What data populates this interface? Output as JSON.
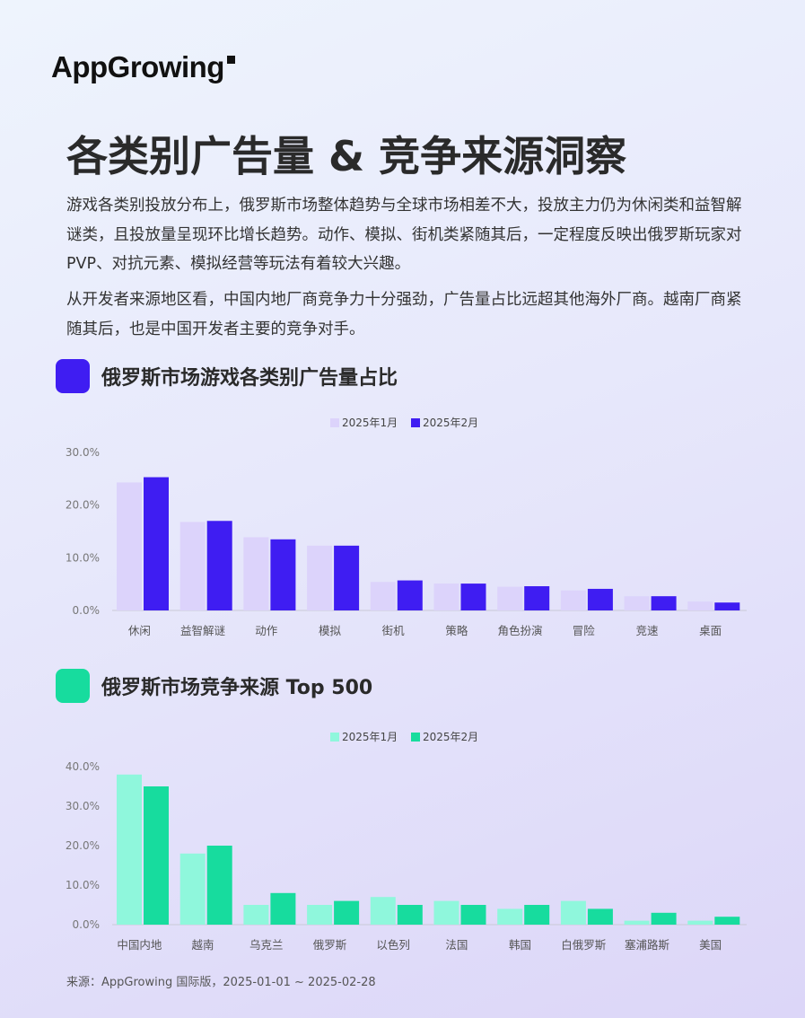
{
  "logo": {
    "text": "AppGrowing"
  },
  "title": "各类别广告量 & 竞争来源洞察",
  "paragraphs": [
    "游戏各类别投放分布上，俄罗斯市场整体趋势与全球市场相差不大，投放主力仍为休闲类和益智解谜类，且投放量呈现环比增长趋势。动作、模拟、街机类紧随其后，一定程度反映出俄罗斯玩家对 PVP、对抗元素、模拟经营等玩法有着较大兴趣。",
    "从开发者来源地区看，中国内地厂商竞争力十分强劲，广告量占比远超其他海外厂商。越南厂商紧随其后，也是中国开发者主要的竞争对手。"
  ],
  "section1": {
    "title": "俄罗斯市场游戏各类别广告量占比",
    "accent": "#3f1df2"
  },
  "section2": {
    "title": "俄罗斯市场竞争来源 Top 500",
    "accent": "#17dc9e"
  },
  "chart_data": [
    {
      "type": "bar",
      "categories": [
        "休闲",
        "益智解谜",
        "动作",
        "模拟",
        "街机",
        "策略",
        "角色扮演",
        "冒险",
        "竞速",
        "桌面"
      ],
      "series": [
        {
          "name": "2025年1月",
          "color": "#dcd3fb",
          "values": [
            24.3,
            16.8,
            13.9,
            12.3,
            5.4,
            5.1,
            4.5,
            3.8,
            2.7,
            1.7
          ]
        },
        {
          "name": "2025年2月",
          "color": "#3f1df2",
          "values": [
            25.3,
            17.0,
            13.5,
            12.3,
            5.7,
            5.1,
            4.6,
            4.1,
            2.7,
            1.5
          ]
        }
      ],
      "ylim": [
        0,
        30
      ],
      "yticks": [
        "0.0%",
        "10.0%",
        "20.0%",
        "30.0%"
      ],
      "legend": "top-center",
      "grid": false
    },
    {
      "type": "bar",
      "categories": [
        "中国内地",
        "越南",
        "乌克兰",
        "俄罗斯",
        "以色列",
        "法国",
        "韩国",
        "白俄罗斯",
        "塞浦路斯",
        "美国"
      ],
      "series": [
        {
          "name": "2025年1月",
          "color": "#8ff7dc",
          "values": [
            38,
            18,
            5,
            5,
            7,
            6,
            4,
            6,
            1,
            1
          ]
        },
        {
          "name": "2025年2月",
          "color": "#17dc9e",
          "values": [
            35,
            20,
            8,
            6,
            5,
            5,
            5,
            4,
            3,
            2
          ]
        }
      ],
      "ylim": [
        0,
        40
      ],
      "yticks": [
        "0.0%",
        "10.0%",
        "20.0%",
        "30.0%",
        "40.0%"
      ],
      "legend": "top-center",
      "grid": false
    }
  ],
  "source": "来源：AppGrowing 国际版，2025-01-01 ~ 2025-02-28"
}
